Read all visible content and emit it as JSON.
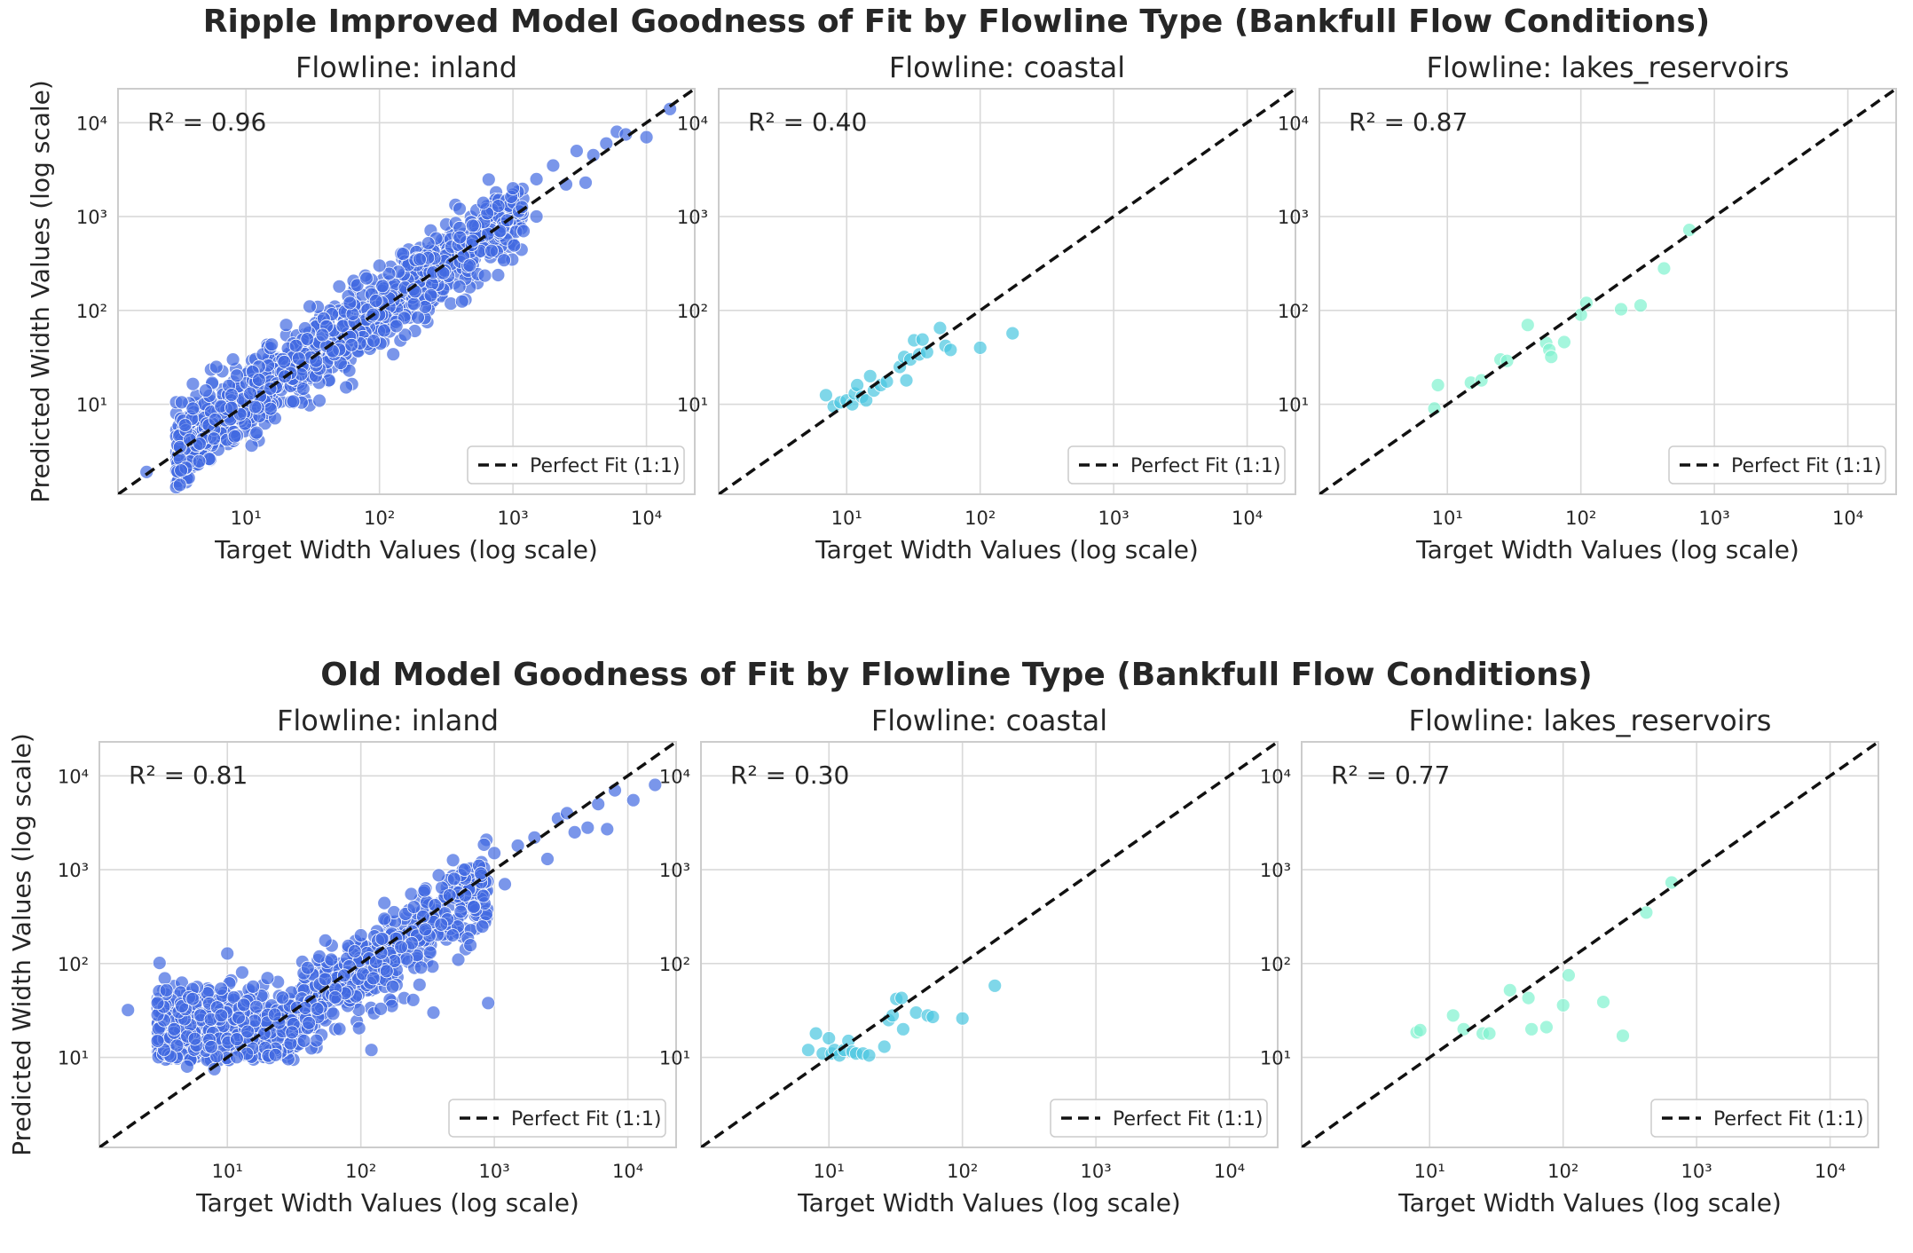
{
  "figure": {
    "top_title": "Ripple Improved Model Goodness of Fit by Flowline Type (Bankfull Flow Conditions)",
    "bottom_title": "Old Model Goodness of Fit by Flowline Type (Bankfull Flow Conditions)"
  },
  "colors": {
    "inland": "#4169E1",
    "coastal": "#48C6E0",
    "lakes_reservoirs": "#7FF2CF",
    "grid": "#d9d9d9",
    "frame": "#cccccc",
    "fit_line": "#111111"
  },
  "chart_data": [
    {
      "type": "scatter",
      "row": 0,
      "col": 0,
      "title": "Flowline: inland",
      "xlabel": "Target Width Values (log scale)",
      "ylabel": "Predicted Width Values (log scale)",
      "r2_label": "R² = 0.96",
      "legend": "Perfect Fit (1:1)",
      "legend_position": "lower-right",
      "xscale": "log",
      "yscale": "log",
      "xlim": [
        1.1,
        23000
      ],
      "ylim": [
        1.1,
        23000
      ],
      "xticks": [
        10,
        100,
        1000,
        10000
      ],
      "yticks": [
        10,
        100,
        1000,
        10000
      ],
      "tick_labels": [
        "10¹",
        "10²",
        "10³",
        "10⁴"
      ],
      "grid": true,
      "color": "inland",
      "cloud": {
        "x_range": [
          3,
          1200
        ],
        "log_scatter": 0.2,
        "n": 1100,
        "bias": 0.0
      },
      "points": [
        [
          1.8,
          1.9
        ],
        [
          3.2,
          3.5
        ],
        [
          3.3,
          10.5
        ],
        [
          3.5,
          6
        ],
        [
          3.8,
          4.2
        ],
        [
          4,
          9
        ],
        [
          4.5,
          3.8
        ],
        [
          5,
          14
        ],
        [
          6,
          25
        ],
        [
          8,
          30
        ],
        [
          20,
          70
        ],
        [
          30,
          110
        ],
        [
          50,
          180
        ],
        [
          60,
          120
        ],
        [
          80,
          220
        ],
        [
          100,
          300
        ],
        [
          150,
          400
        ],
        [
          200,
          350
        ],
        [
          300,
          250
        ],
        [
          400,
          600
        ],
        [
          500,
          800
        ],
        [
          600,
          1400
        ],
        [
          800,
          700
        ],
        [
          1000,
          2000
        ],
        [
          1200,
          700
        ],
        [
          1500,
          2500
        ],
        [
          1500,
          1000
        ],
        [
          2000,
          3500
        ],
        [
          2500,
          2200
        ],
        [
          3000,
          5000
        ],
        [
          3500,
          2300
        ],
        [
          4000,
          4500
        ],
        [
          5000,
          6000
        ],
        [
          6000,
          8000
        ],
        [
          7000,
          7500
        ],
        [
          10000,
          7000
        ],
        [
          15000,
          14000
        ]
      ]
    },
    {
      "type": "scatter",
      "row": 0,
      "col": 1,
      "title": "Flowline: coastal",
      "xlabel": "Target Width Values (log scale)",
      "ylabel": "",
      "r2_label": "R² = 0.40",
      "legend": "Perfect Fit (1:1)",
      "legend_position": "lower-right",
      "xscale": "log",
      "yscale": "log",
      "xlim": [
        1.1,
        23000
      ],
      "ylim": [
        1.1,
        23000
      ],
      "xticks": [
        10,
        100,
        1000,
        10000
      ],
      "yticks": [
        10,
        100,
        1000,
        10000
      ],
      "tick_labels": [
        "10¹",
        "10²",
        "10³",
        "10⁴"
      ],
      "grid": true,
      "color": "coastal",
      "points": [
        [
          7,
          12.5
        ],
        [
          8,
          9.5
        ],
        [
          9,
          10.5
        ],
        [
          10,
          11
        ],
        [
          11,
          10
        ],
        [
          11.5,
          13
        ],
        [
          12,
          16
        ],
        [
          13,
          12
        ],
        [
          14,
          11
        ],
        [
          15,
          20
        ],
        [
          16,
          14
        ],
        [
          18,
          16
        ],
        [
          20,
          17.5
        ],
        [
          25,
          25
        ],
        [
          27,
          32
        ],
        [
          28,
          18
        ],
        [
          30,
          30
        ],
        [
          32,
          48
        ],
        [
          35,
          34
        ],
        [
          37,
          49
        ],
        [
          40,
          36
        ],
        [
          50,
          65
        ],
        [
          55,
          42
        ],
        [
          60,
          38
        ],
        [
          100,
          40
        ],
        [
          175,
          57
        ]
      ]
    },
    {
      "type": "scatter",
      "row": 0,
      "col": 2,
      "title": "Flowline: lakes_reservoirs",
      "xlabel": "Target Width Values (log scale)",
      "ylabel": "",
      "r2_label": "R² = 0.87",
      "legend": "Perfect Fit (1:1)",
      "legend_position": "lower-right",
      "xscale": "log",
      "yscale": "log",
      "xlim": [
        1.1,
        23000
      ],
      "ylim": [
        1.1,
        23000
      ],
      "xticks": [
        10,
        100,
        1000,
        10000
      ],
      "yticks": [
        10,
        100,
        1000,
        10000
      ],
      "tick_labels": [
        "10¹",
        "10²",
        "10³",
        "10⁴"
      ],
      "grid": true,
      "color": "lakes_reservoirs",
      "points": [
        [
          8,
          9
        ],
        [
          8.5,
          16
        ],
        [
          15,
          17
        ],
        [
          18,
          18
        ],
        [
          25,
          30
        ],
        [
          28,
          29
        ],
        [
          40,
          70
        ],
        [
          55,
          45
        ],
        [
          58,
          38
        ],
        [
          60,
          32
        ],
        [
          75,
          46
        ],
        [
          100,
          90
        ],
        [
          110,
          120
        ],
        [
          200,
          103
        ],
        [
          280,
          113
        ],
        [
          420,
          280
        ],
        [
          650,
          720
        ]
      ]
    },
    {
      "type": "scatter",
      "row": 1,
      "col": 0,
      "title": "Flowline: inland",
      "xlabel": "Target Width Values (log scale)",
      "ylabel": "Predicted Width Values (log scale)",
      "r2_label": "R² = 0.81",
      "legend": "Perfect Fit (1:1)",
      "legend_position": "lower-right",
      "xscale": "log",
      "yscale": "log",
      "xlim": [
        1.1,
        23000
      ],
      "ylim": [
        1.1,
        23000
      ],
      "xticks": [
        10,
        100,
        1000,
        10000
      ],
      "yticks": [
        10,
        100,
        1000,
        10000
      ],
      "tick_labels": [
        "10¹",
        "10²",
        "10³",
        "10⁴"
      ],
      "grid": true,
      "color": "inland",
      "cloud": {
        "x_range": [
          3,
          900
        ],
        "log_scatter": 0.22,
        "n": 1100,
        "floor": 11
      },
      "points": [
        [
          1.8,
          32
        ],
        [
          3,
          15
        ],
        [
          3,
          38
        ],
        [
          3.5,
          52
        ],
        [
          4,
          20
        ],
        [
          5,
          8
        ],
        [
          5.5,
          42
        ],
        [
          8,
          7.5
        ],
        [
          9,
          28
        ],
        [
          10,
          128
        ],
        [
          20,
          70
        ],
        [
          40,
          90
        ],
        [
          60,
          110
        ],
        [
          100,
          200
        ],
        [
          120,
          12
        ],
        [
          150,
          300
        ],
        [
          200,
          150
        ],
        [
          250,
          400
        ],
        [
          300,
          600
        ],
        [
          350,
          30
        ],
        [
          400,
          260
        ],
        [
          500,
          800
        ],
        [
          600,
          1000
        ],
        [
          700,
          400
        ],
        [
          900,
          38
        ],
        [
          1000,
          1500
        ],
        [
          1200,
          700
        ],
        [
          1500,
          1800
        ],
        [
          2000,
          2200
        ],
        [
          2500,
          1300
        ],
        [
          3000,
          3500
        ],
        [
          3500,
          4000
        ],
        [
          4000,
          2500
        ],
        [
          5000,
          2800
        ],
        [
          6000,
          5000
        ],
        [
          7000,
          2700
        ],
        [
          8000,
          7000
        ],
        [
          11000,
          5500
        ],
        [
          16000,
          8000
        ]
      ]
    },
    {
      "type": "scatter",
      "row": 1,
      "col": 1,
      "title": "Flowline: coastal",
      "xlabel": "Target Width Values (log scale)",
      "ylabel": "",
      "r2_label": "R² = 0.30",
      "legend": "Perfect Fit (1:1)",
      "legend_position": "lower-right",
      "xscale": "log",
      "yscale": "log",
      "xlim": [
        1.1,
        23000
      ],
      "ylim": [
        1.1,
        23000
      ],
      "xticks": [
        10,
        100,
        1000,
        10000
      ],
      "yticks": [
        10,
        100,
        1000,
        10000
      ],
      "tick_labels": [
        "10¹",
        "10²",
        "10³",
        "10⁴"
      ],
      "grid": true,
      "color": "coastal",
      "points": [
        [
          7,
          12
        ],
        [
          8,
          18
        ],
        [
          9,
          11
        ],
        [
          10,
          16
        ],
        [
          10.5,
          11
        ],
        [
          11,
          12
        ],
        [
          12,
          10.5
        ],
        [
          13,
          12
        ],
        [
          14,
          15
        ],
        [
          15,
          11.5
        ],
        [
          16,
          11
        ],
        [
          18,
          11
        ],
        [
          20,
          10.5
        ],
        [
          26,
          13
        ],
        [
          28,
          25
        ],
        [
          30,
          28
        ],
        [
          32,
          42
        ],
        [
          35,
          43
        ],
        [
          36,
          20
        ],
        [
          45,
          30
        ],
        [
          55,
          28
        ],
        [
          60,
          27
        ],
        [
          100,
          26
        ],
        [
          175,
          58
        ]
      ]
    },
    {
      "type": "scatter",
      "row": 1,
      "col": 2,
      "title": "Flowline: lakes_reservoirs",
      "xlabel": "Target Width Values (log scale)",
      "ylabel": "",
      "r2_label": "R² = 0.77",
      "legend": "Perfect Fit (1:1)",
      "legend_position": "lower-right",
      "xscale": "log",
      "yscale": "log",
      "xlim": [
        1.1,
        23000
      ],
      "ylim": [
        1.1,
        23000
      ],
      "xticks": [
        10,
        100,
        1000,
        10000
      ],
      "yticks": [
        10,
        100,
        1000,
        10000
      ],
      "tick_labels": [
        "10¹",
        "10²",
        "10³",
        "10⁴"
      ],
      "grid": true,
      "color": "lakes_reservoirs",
      "points": [
        [
          8,
          18.5
        ],
        [
          8.5,
          19.5
        ],
        [
          15,
          28
        ],
        [
          18,
          20
        ],
        [
          25,
          18
        ],
        [
          28,
          18
        ],
        [
          40,
          52
        ],
        [
          55,
          43
        ],
        [
          58,
          20
        ],
        [
          75,
          21
        ],
        [
          100,
          36
        ],
        [
          110,
          75
        ],
        [
          200,
          39
        ],
        [
          280,
          17
        ],
        [
          420,
          350
        ],
        [
          650,
          730
        ]
      ]
    }
  ]
}
